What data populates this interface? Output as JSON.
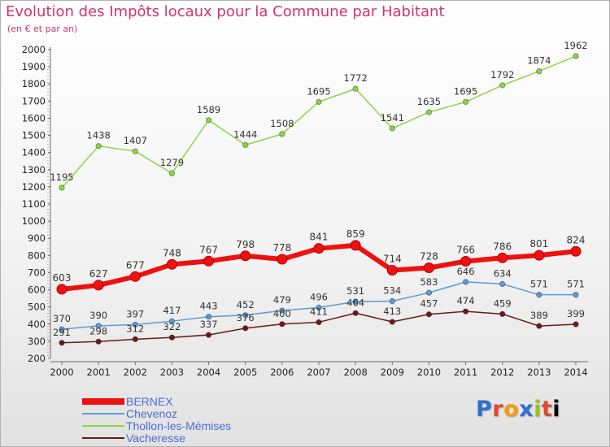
{
  "title": "Evolution des Impôts locaux pour la Commune par Habitant",
  "subtitle": "(en € et par an)",
  "logo_text": "Proxiti",
  "chart_data": {
    "type": "line",
    "title": "Evolution des Impôts locaux pour la Commune par Habitant",
    "subtitle": "(en € et par an)",
    "xlabel": "",
    "ylabel": "",
    "x": [
      "2000",
      "2001",
      "2002",
      "2003",
      "2004",
      "2005",
      "2006",
      "2007",
      "2008",
      "2009",
      "2010",
      "2011",
      "2012",
      "2013",
      "2014"
    ],
    "ylim": [
      200,
      2000
    ],
    "ytick_step": 100,
    "grid": false,
    "legend_position": "bottom-left",
    "series": [
      {
        "name": "BERNEX",
        "color": "#ee1111",
        "values": [
          603,
          627,
          677,
          748,
          767,
          798,
          778,
          841,
          859,
          714,
          728,
          766,
          786,
          801,
          824
        ]
      },
      {
        "name": "Chevenoz",
        "color": "#5b9bd5",
        "values": [
          370,
          390,
          397,
          417,
          443,
          452,
          479,
          496,
          531,
          534,
          583,
          646,
          634,
          571,
          571
        ]
      },
      {
        "name": "Thollon-les-Mémises",
        "color": "#8ed34a",
        "values": [
          1195,
          1438,
          1407,
          1279,
          1589,
          1444,
          1508,
          1695,
          1772,
          1541,
          1635,
          1695,
          1792,
          1874,
          1962
        ]
      },
      {
        "name": "Vacheresse",
        "color": "#6b1a1a",
        "values": [
          291,
          298,
          312,
          322,
          337,
          376,
          400,
          411,
          464,
          413,
          457,
          474,
          459,
          389,
          399
        ]
      }
    ]
  }
}
